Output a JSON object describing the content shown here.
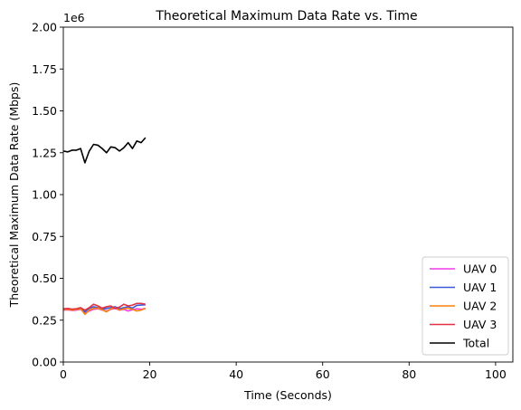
{
  "chart_data": {
    "type": "line",
    "title": "Theoretical Maximum Data Rate vs. Time",
    "xlabel": "Time (Seconds)",
    "ylabel": "Theoretical Maximum Data Rate (Mbps)",
    "y_offset_label": "1e6",
    "xlim": [
      0,
      104
    ],
    "ylim": [
      0,
      2000000
    ],
    "x_ticks": [
      0,
      20,
      40,
      60,
      80,
      100
    ],
    "y_ticks": [
      0,
      250000,
      500000,
      750000,
      1000000,
      1250000,
      1500000,
      1750000,
      2000000
    ],
    "y_tick_labels": [
      "0.00",
      "0.25",
      "0.50",
      "0.75",
      "1.00",
      "1.25",
      "1.50",
      "1.75",
      "2.00"
    ],
    "grid": false,
    "legend_position": "lower-right",
    "x": [
      0,
      1,
      2,
      3,
      4,
      5,
      6,
      7,
      8,
      9,
      10,
      11,
      12,
      13,
      14,
      15,
      16,
      17,
      18,
      19
    ],
    "series": [
      {
        "name": "UAV 0",
        "color": "#ee3ee8",
        "values": [
          310000,
          312000,
          308000,
          310000,
          315000,
          295000,
          305000,
          315000,
          318000,
          310000,
          305000,
          315000,
          320000,
          310000,
          315000,
          305000,
          312000,
          318000,
          315000,
          320000
        ]
      },
      {
        "name": "UAV 1",
        "color": "#3a59d8",
        "values": [
          315000,
          318000,
          312000,
          316000,
          320000,
          300000,
          320000,
          330000,
          325000,
          315000,
          320000,
          325000,
          330000,
          318000,
          325000,
          330000,
          322000,
          338000,
          340000,
          342000
        ]
      },
      {
        "name": "UAV 2",
        "color": "#f8820f",
        "values": [
          312000,
          315000,
          310000,
          314000,
          318000,
          285000,
          310000,
          320000,
          322000,
          312000,
          300000,
          318000,
          325000,
          310000,
          318000,
          322000,
          315000,
          305000,
          310000,
          320000
        ]
      },
      {
        "name": "UAV 3",
        "color": "#e23145",
        "values": [
          318000,
          320000,
          316000,
          318000,
          325000,
          310000,
          325000,
          345000,
          335000,
          322000,
          330000,
          335000,
          320000,
          328000,
          345000,
          335000,
          340000,
          350000,
          350000,
          345000
        ]
      },
      {
        "name": "Total",
        "color": "#000000",
        "values": [
          1260000,
          1255000,
          1265000,
          1265000,
          1275000,
          1190000,
          1260000,
          1300000,
          1295000,
          1275000,
          1250000,
          1285000,
          1280000,
          1260000,
          1280000,
          1310000,
          1275000,
          1320000,
          1310000,
          1340000
        ]
      }
    ]
  }
}
